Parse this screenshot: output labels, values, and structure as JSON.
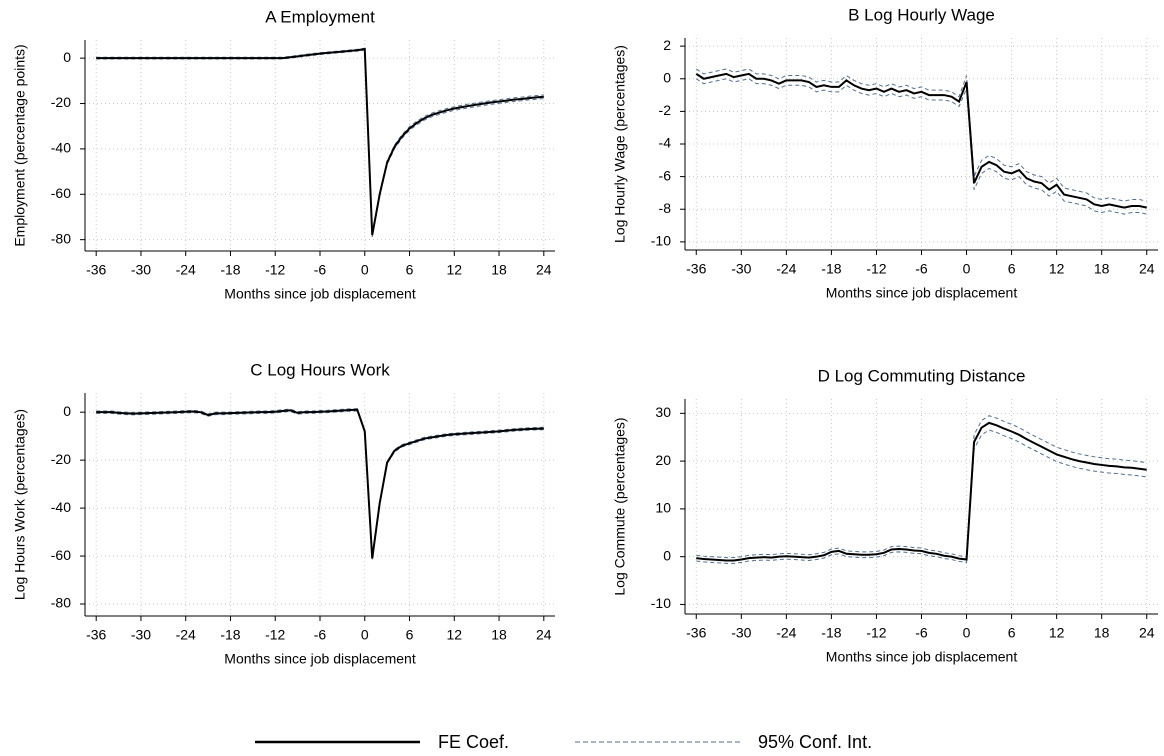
{
  "legend": [
    {
      "name": "FE Coef.",
      "color": "#000000",
      "style": "solid"
    },
    {
      "name": "95% Conf. Int.",
      "color": "#4f6f93",
      "style": "dashed"
    }
  ],
  "chart_data": [
    {
      "type": "line",
      "title": "A Employment",
      "xlabel": "Months since job displacement",
      "ylabel": "Employment (percentage points)",
      "x": [
        -36,
        -35,
        -34,
        -33,
        -32,
        -31,
        -30,
        -29,
        -28,
        -27,
        -26,
        -25,
        -24,
        -23,
        -22,
        -21,
        -20,
        -19,
        -18,
        -17,
        -16,
        -15,
        -14,
        -13,
        -12,
        -11,
        -10,
        -9,
        -8,
        -7,
        -6,
        -5,
        -4,
        -3,
        -2,
        -1,
        0,
        1,
        2,
        3,
        4,
        5,
        6,
        7,
        8,
        9,
        10,
        11,
        12,
        13,
        14,
        15,
        16,
        17,
        18,
        19,
        20,
        21,
        22,
        23,
        24
      ],
      "coef": [
        0,
        0,
        0,
        0,
        0,
        0,
        0,
        0,
        0,
        0,
        0,
        0,
        0,
        0,
        0,
        0,
        0,
        0,
        0,
        0,
        0,
        0,
        0,
        0,
        0,
        0,
        0.4,
        0.8,
        1.2,
        1.6,
        2.0,
        2.3,
        2.6,
        2.9,
        3.2,
        3.5,
        4,
        -78,
        -60,
        -46,
        -39,
        -34.5,
        -31,
        -28.5,
        -26.5,
        -25,
        -24,
        -23,
        -22.2,
        -21.6,
        -21,
        -20.5,
        -20,
        -19.5,
        -19.1,
        -18.7,
        -18.3,
        -18,
        -17.6,
        -17.3,
        -17
      ],
      "ci_lower": [
        -0.4,
        -0.4,
        -0.4,
        -0.4,
        -0.4,
        -0.4,
        -0.4,
        -0.4,
        -0.4,
        -0.4,
        -0.4,
        -0.4,
        -0.4,
        -0.4,
        -0.4,
        -0.4,
        -0.4,
        -0.4,
        -0.4,
        -0.4,
        -0.4,
        -0.4,
        -0.4,
        -0.4,
        -0.4,
        -0.4,
        0,
        0.4,
        0.8,
        1.2,
        1.6,
        1.9,
        2.2,
        2.5,
        2.8,
        3.1,
        3.6,
        -78.8,
        -60.8,
        -46.8,
        -39.8,
        -35.3,
        -31.8,
        -29.3,
        -27.3,
        -25.8,
        -24.8,
        -23.8,
        -23,
        -22.4,
        -21.8,
        -21.3,
        -20.8,
        -20.3,
        -19.9,
        -19.5,
        -19.1,
        -18.8,
        -18.4,
        -18.1,
        -17.8
      ],
      "ci_upper": [
        0.4,
        0.4,
        0.4,
        0.4,
        0.4,
        0.4,
        0.4,
        0.4,
        0.4,
        0.4,
        0.4,
        0.4,
        0.4,
        0.4,
        0.4,
        0.4,
        0.4,
        0.4,
        0.4,
        0.4,
        0.4,
        0.4,
        0.4,
        0.4,
        0.4,
        0.4,
        0.8,
        1.2,
        1.6,
        2.0,
        2.4,
        2.7,
        3.0,
        3.3,
        3.6,
        3.9,
        4.4,
        -77.2,
        -59.2,
        -45.2,
        -38.2,
        -33.7,
        -30.2,
        -27.7,
        -25.7,
        -24.2,
        -23.2,
        -22.2,
        -21.4,
        -20.8,
        -20.2,
        -19.7,
        -19.2,
        -18.7,
        -18.3,
        -17.9,
        -17.5,
        -17.2,
        -16.8,
        -16.5,
        -16.2
      ],
      "xlim": [
        -37.5,
        25.5
      ],
      "ylim": [
        -85,
        8
      ],
      "xticks": [
        -36,
        -30,
        -24,
        -18,
        -12,
        -6,
        0,
        6,
        12,
        18,
        24
      ],
      "yticks": [
        0,
        -20,
        -40,
        -60,
        -80
      ],
      "grid": true
    },
    {
      "type": "line",
      "title": "B Log Hourly Wage",
      "xlabel": "Months since job displacement",
      "ylabel": "Log Hourly Wage (percentages)",
      "x": [
        -36,
        -35,
        -34,
        -33,
        -32,
        -31,
        -30,
        -29,
        -28,
        -27,
        -26,
        -25,
        -24,
        -23,
        -22,
        -21,
        -20,
        -19,
        -18,
        -17,
        -16,
        -15,
        -14,
        -13,
        -12,
        -11,
        -10,
        -9,
        -8,
        -7,
        -6,
        -5,
        -4,
        -3,
        -2,
        -1,
        0,
        1,
        2,
        3,
        4,
        5,
        6,
        7,
        8,
        9,
        10,
        11,
        12,
        13,
        14,
        15,
        16,
        17,
        18,
        19,
        20,
        21,
        22,
        23,
        24
      ],
      "coef": [
        0.3,
        0.0,
        0.1,
        0.2,
        0.3,
        0.1,
        0.2,
        0.3,
        0.0,
        0.0,
        -0.1,
        -0.3,
        -0.1,
        -0.1,
        -0.1,
        -0.2,
        -0.5,
        -0.4,
        -0.5,
        -0.5,
        -0.1,
        -0.4,
        -0.6,
        -0.7,
        -0.6,
        -0.8,
        -0.6,
        -0.8,
        -0.7,
        -0.9,
        -0.8,
        -1.0,
        -1.0,
        -1.0,
        -1.1,
        -1.4,
        -0.2,
        -6.4,
        -5.4,
        -5.1,
        -5.3,
        -5.7,
        -5.8,
        -5.6,
        -6.1,
        -6.3,
        -6.4,
        -6.8,
        -6.5,
        -7.1,
        -7.2,
        -7.3,
        -7.4,
        -7.7,
        -7.8,
        -7.7,
        -7.8,
        -7.9,
        -7.8,
        -7.8,
        -7.9
      ],
      "ci_lower": [
        0.0,
        -0.3,
        -0.2,
        -0.1,
        0.0,
        -0.2,
        -0.1,
        0.0,
        -0.3,
        -0.3,
        -0.4,
        -0.6,
        -0.4,
        -0.4,
        -0.4,
        -0.5,
        -0.8,
        -0.7,
        -0.8,
        -0.8,
        -0.4,
        -0.7,
        -0.9,
        -1.0,
        -0.9,
        -1.1,
        -0.9,
        -1.1,
        -1.0,
        -1.2,
        -1.1,
        -1.3,
        -1.3,
        -1.3,
        -1.4,
        -1.7,
        -0.6,
        -6.8,
        -5.8,
        -5.5,
        -5.7,
        -6.1,
        -6.2,
        -6.0,
        -6.5,
        -6.7,
        -6.8,
        -7.2,
        -6.9,
        -7.5,
        -7.6,
        -7.7,
        -7.8,
        -8.1,
        -8.2,
        -8.1,
        -8.2,
        -8.3,
        -8.2,
        -8.2,
        -8.3
      ],
      "ci_upper": [
        0.6,
        0.3,
        0.4,
        0.5,
        0.6,
        0.4,
        0.5,
        0.6,
        0.3,
        0.3,
        0.2,
        0.0,
        0.2,
        0.2,
        0.2,
        0.1,
        -0.2,
        -0.1,
        -0.2,
        -0.2,
        0.2,
        -0.1,
        -0.3,
        -0.4,
        -0.3,
        -0.5,
        -0.3,
        -0.5,
        -0.4,
        -0.6,
        -0.5,
        -0.7,
        -0.7,
        -0.7,
        -0.8,
        -1.1,
        0.2,
        -6.0,
        -5.0,
        -4.7,
        -4.9,
        -5.3,
        -5.4,
        -5.2,
        -5.7,
        -5.9,
        -6.0,
        -6.4,
        -6.1,
        -6.7,
        -6.8,
        -6.9,
        -7.0,
        -7.3,
        -7.4,
        -7.3,
        -7.4,
        -7.5,
        -7.4,
        -7.4,
        -7.5
      ],
      "xlim": [
        -37.5,
        25.5
      ],
      "ylim": [
        -10.5,
        2.5
      ],
      "xticks": [
        -36,
        -30,
        -24,
        -18,
        -12,
        -6,
        0,
        6,
        12,
        18,
        24
      ],
      "yticks": [
        2,
        0,
        -2,
        -4,
        -6,
        -8,
        -10
      ],
      "grid": true
    },
    {
      "type": "line",
      "title": "C Log Hours Work",
      "xlabel": "Months since job displacement",
      "ylabel": "Log Hours Work (percentages)",
      "x": [
        -36,
        -35,
        -34,
        -33,
        -32,
        -31,
        -30,
        -29,
        -28,
        -27,
        -26,
        -25,
        -24,
        -23,
        -22,
        -21,
        -20,
        -19,
        -18,
        -17,
        -16,
        -15,
        -14,
        -13,
        -12,
        -11,
        -10,
        -9,
        -8,
        -7,
        -6,
        -5,
        -4,
        -3,
        -2,
        -1,
        0,
        1,
        2,
        3,
        4,
        5,
        6,
        7,
        8,
        9,
        10,
        11,
        12,
        13,
        14,
        15,
        16,
        17,
        18,
        19,
        20,
        21,
        22,
        23,
        24
      ],
      "coef": [
        0,
        0,
        0,
        -0.3,
        -0.5,
        -0.6,
        -0.5,
        -0.4,
        -0.3,
        -0.2,
        -0.1,
        0,
        0.2,
        0.3,
        0,
        -1.2,
        -0.5,
        -0.5,
        -0.4,
        -0.3,
        -0.2,
        -0.1,
        0,
        0,
        0.2,
        0.5,
        0.8,
        -0.3,
        0,
        0,
        0.2,
        0.3,
        0.5,
        0.7,
        0.9,
        1.0,
        -8,
        -61,
        -38,
        -21,
        -16,
        -14,
        -13,
        -12,
        -11,
        -10.5,
        -10,
        -9.5,
        -9.2,
        -9,
        -8.8,
        -8.6,
        -8.4,
        -8.2,
        -8,
        -7.7,
        -7.4,
        -7.2,
        -7,
        -6.9,
        -6.8
      ],
      "ci_lower": [
        -0.5,
        -0.5,
        -0.5,
        -0.8,
        -1.0,
        -1.1,
        -1.0,
        -0.9,
        -0.8,
        -0.7,
        -0.6,
        -0.5,
        -0.3,
        -0.2,
        -0.5,
        -1.7,
        -1.0,
        -1.0,
        -0.9,
        -0.8,
        -0.7,
        -0.6,
        -0.5,
        -0.5,
        -0.3,
        0.0,
        0.3,
        -0.8,
        -0.5,
        -0.5,
        -0.3,
        -0.2,
        0.0,
        0.2,
        0.4,
        0.5,
        -8.5,
        -61.5,
        -38.5,
        -21.5,
        -16.5,
        -14.5,
        -13.5,
        -12.5,
        -11.5,
        -11,
        -10.5,
        -10,
        -9.7,
        -9.5,
        -9.3,
        -9.1,
        -8.9,
        -8.7,
        -8.5,
        -8.2,
        -7.9,
        -7.7,
        -7.5,
        -7.4,
        -7.3
      ],
      "ci_upper": [
        0.5,
        0.5,
        0.5,
        0.2,
        0.0,
        -0.1,
        0.0,
        0.1,
        0.2,
        0.3,
        0.4,
        0.5,
        0.7,
        0.8,
        0.5,
        -0.7,
        0.0,
        0.0,
        0.1,
        0.2,
        0.3,
        0.4,
        0.5,
        0.5,
        0.7,
        1.0,
        1.3,
        0.2,
        0.5,
        0.5,
        0.7,
        0.8,
        1.0,
        1.2,
        1.4,
        1.5,
        -7.5,
        -60.5,
        -37.5,
        -20.5,
        -15.5,
        -13.5,
        -12.5,
        -11.5,
        -10.5,
        -10,
        -9.5,
        -9,
        -8.7,
        -8.5,
        -8.3,
        -8.1,
        -7.9,
        -7.7,
        -7.5,
        -7.2,
        -6.9,
        -6.7,
        -6.5,
        -6.4,
        -6.3
      ],
      "xlim": [
        -37.5,
        25.5
      ],
      "ylim": [
        -85,
        8
      ],
      "xticks": [
        -36,
        -30,
        -24,
        -18,
        -12,
        -6,
        0,
        6,
        12,
        18,
        24
      ],
      "yticks": [
        0,
        -20,
        -40,
        -60,
        -80
      ],
      "grid": true
    },
    {
      "type": "line",
      "title": "D Log Commuting Distance",
      "xlabel": "Months since job displacement",
      "ylabel": "Log Commute (percentages)",
      "x": [
        -36,
        -35,
        -34,
        -33,
        -32,
        -31,
        -30,
        -29,
        -28,
        -27,
        -26,
        -25,
        -24,
        -23,
        -22,
        -21,
        -20,
        -19,
        -18,
        -17,
        -16,
        -15,
        -14,
        -13,
        -12,
        -11,
        -10,
        -9,
        -8,
        -7,
        -6,
        -5,
        -4,
        -3,
        -2,
        -1,
        0,
        1,
        2,
        3,
        4,
        5,
        6,
        7,
        8,
        9,
        10,
        11,
        12,
        13,
        14,
        15,
        16,
        17,
        18,
        19,
        20,
        21,
        22,
        23,
        24
      ],
      "coef": [
        -0.3,
        -0.5,
        -0.6,
        -0.7,
        -0.8,
        -0.8,
        -0.6,
        -0.3,
        -0.2,
        -0.1,
        -0.2,
        0,
        0.1,
        0,
        -0.1,
        -0.2,
        0,
        0.3,
        1.0,
        1.2,
        0.6,
        0.5,
        0.4,
        0.4,
        0.5,
        0.8,
        1.5,
        1.6,
        1.5,
        1.3,
        1.2,
        0.8,
        0.6,
        0.2,
        0,
        -0.4,
        -0.6,
        24,
        27,
        28,
        27.5,
        26.8,
        26.2,
        25.5,
        24.6,
        23.8,
        23,
        22.2,
        21.4,
        20.9,
        20.4,
        20,
        19.7,
        19.4,
        19.2,
        19,
        18.9,
        18.7,
        18.6,
        18.4,
        18.2
      ],
      "ci_lower": [
        -0.9,
        -1.1,
        -1.2,
        -1.3,
        -1.4,
        -1.4,
        -1.2,
        -0.9,
        -0.8,
        -0.7,
        -0.8,
        -0.6,
        -0.5,
        -0.6,
        -0.7,
        -0.8,
        -0.6,
        -0.3,
        0.4,
        0.6,
        0.0,
        -0.1,
        -0.2,
        -0.2,
        -0.1,
        0.2,
        0.9,
        1.0,
        0.9,
        0.7,
        0.6,
        0.2,
        0.0,
        -0.4,
        -0.6,
        -1.0,
        -1.2,
        22.5,
        25.5,
        26.5,
        26,
        25.3,
        24.7,
        24,
        23.1,
        22.3,
        21.5,
        20.7,
        19.9,
        19.4,
        18.9,
        18.5,
        18.2,
        17.9,
        17.7,
        17.5,
        17.4,
        17.2,
        17.1,
        16.9,
        16.7
      ],
      "ci_upper": [
        0.3,
        0.1,
        0.0,
        -0.1,
        -0.2,
        -0.2,
        0.0,
        0.3,
        0.4,
        0.5,
        0.4,
        0.6,
        0.7,
        0.6,
        0.5,
        0.4,
        0.6,
        0.9,
        1.6,
        1.8,
        1.2,
        1.1,
        1.0,
        1.0,
        1.1,
        1.4,
        2.1,
        2.2,
        2.1,
        1.9,
        1.8,
        1.4,
        1.2,
        0.8,
        0.6,
        0.2,
        0.0,
        25.5,
        28.5,
        29.5,
        29,
        28.3,
        27.7,
        27,
        26.1,
        25.3,
        24.5,
        23.7,
        22.9,
        22.4,
        21.9,
        21.5,
        21.2,
        20.9,
        20.7,
        20.5,
        20.4,
        20.2,
        20.1,
        19.9,
        19.7
      ],
      "xlim": [
        -37.5,
        25.5
      ],
      "ylim": [
        -12,
        33
      ],
      "xticks": [
        -36,
        -30,
        -24,
        -18,
        -12,
        -6,
        0,
        6,
        12,
        18,
        24
      ],
      "yticks": [
        30,
        20,
        10,
        0,
        -10
      ],
      "grid": true
    }
  ]
}
